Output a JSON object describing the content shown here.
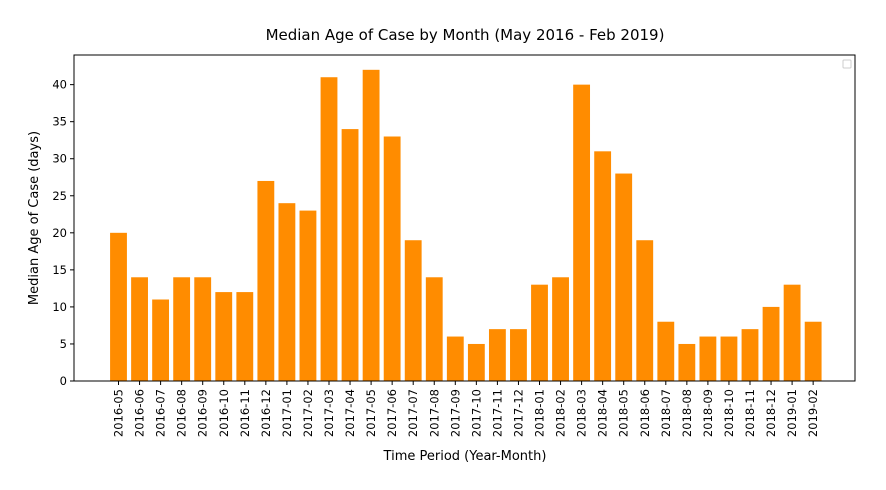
{
  "chart_data": {
    "type": "bar",
    "title": "Median Age of Case by Month (May 2016 - Feb 2019)",
    "xlabel": "Time Period (Year-Month)",
    "ylabel": "Median Age of Case (days)",
    "ylim": [
      0,
      44
    ],
    "yticks": [
      0,
      5,
      10,
      15,
      20,
      25,
      30,
      35,
      40
    ],
    "categories": [
      "2016-05",
      "2016-06",
      "2016-07",
      "2016-08",
      "2016-09",
      "2016-10",
      "2016-11",
      "2016-12",
      "2017-01",
      "2017-02",
      "2017-03",
      "2017-04",
      "2017-05",
      "2017-06",
      "2017-07",
      "2017-08",
      "2017-09",
      "2017-10",
      "2017-11",
      "2017-12",
      "2018-01",
      "2018-02",
      "2018-03",
      "2018-04",
      "2018-05",
      "2018-06",
      "2018-07",
      "2018-08",
      "2018-09",
      "2018-10",
      "2018-11",
      "2018-12",
      "2019-01",
      "2019-02"
    ],
    "values": [
      20,
      14,
      11,
      14,
      14,
      12,
      12,
      27,
      24,
      23,
      41,
      34,
      42,
      33,
      19,
      14,
      6,
      5,
      7,
      7,
      13,
      14,
      40,
      31,
      28,
      19,
      8,
      5,
      6,
      6,
      7,
      10,
      13,
      8
    ],
    "bar_color": "#ff8c00",
    "grid": false,
    "legend": "top-right (empty)"
  }
}
